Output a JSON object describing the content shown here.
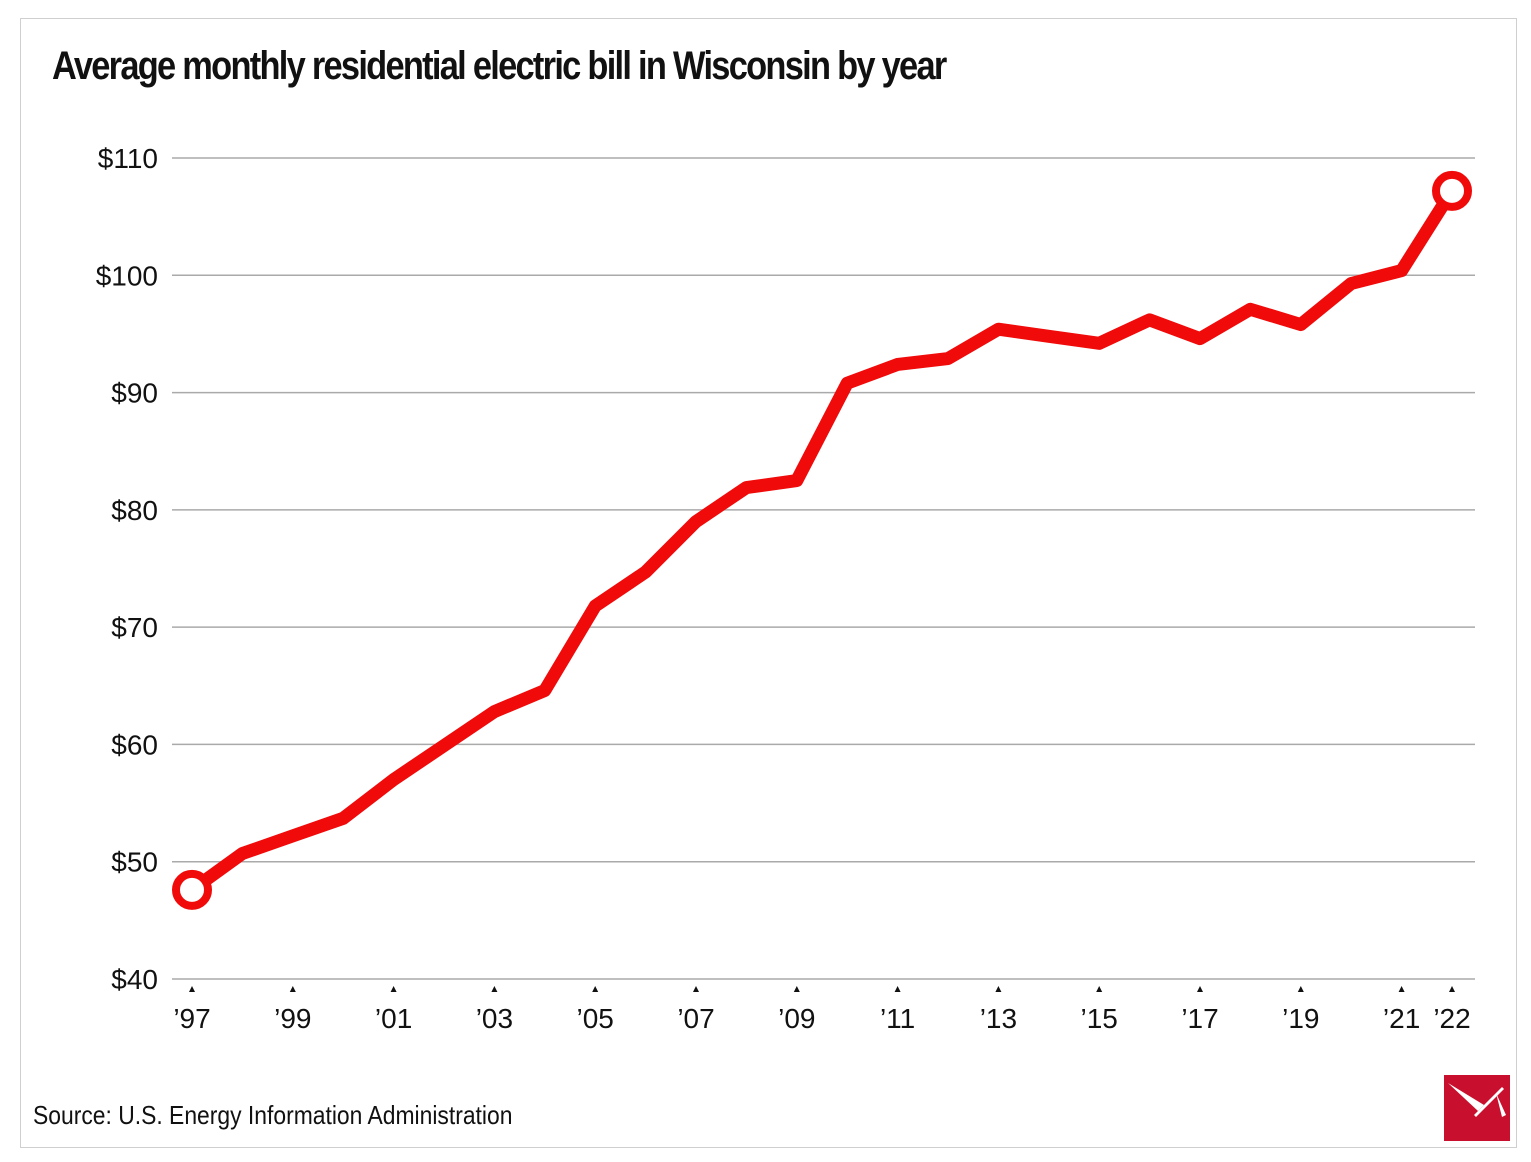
{
  "chart_data": {
    "type": "line",
    "title": "Average monthly residential electric bill in Wisconsin by year",
    "source": "Source: U.S. Energy Information Administration",
    "xlabel": "",
    "ylabel": "",
    "ylim": [
      40,
      110
    ],
    "yticks": [
      40,
      50,
      60,
      70,
      80,
      90,
      100,
      110
    ],
    "ytick_labels": [
      "$40",
      "$50",
      "$60",
      "$70",
      "$80",
      "$90",
      "$100",
      "$110"
    ],
    "xticks": [
      1997,
      1999,
      2001,
      2003,
      2005,
      2007,
      2009,
      2011,
      2013,
      2015,
      2017,
      2019,
      2021,
      2022
    ],
    "xtick_labels": [
      "’97",
      "’99",
      "’01",
      "’03",
      "’05",
      "’07",
      "’09",
      "’11",
      "’13",
      "’15",
      "’17",
      "’19",
      "’21",
      "’22"
    ],
    "grid": "horizontal",
    "line_color": "#f00a0a",
    "x": [
      1997,
      1998,
      1999,
      2000,
      2001,
      2002,
      2003,
      2004,
      2005,
      2006,
      2007,
      2008,
      2009,
      2010,
      2011,
      2012,
      2013,
      2014,
      2015,
      2016,
      2017,
      2018,
      2019,
      2020,
      2021,
      2022
    ],
    "values": [
      47.6,
      50.7,
      52.2,
      53.7,
      57.0,
      59.9,
      62.8,
      64.6,
      71.8,
      74.7,
      79.0,
      81.9,
      82.5,
      90.8,
      92.4,
      92.9,
      95.4,
      94.8,
      94.2,
      96.2,
      94.6,
      97.1,
      95.8,
      99.3,
      100.4,
      107.2
    ],
    "endpoint_markers": "hollow circles"
  },
  "logo": {
    "color": "#c8102e"
  }
}
